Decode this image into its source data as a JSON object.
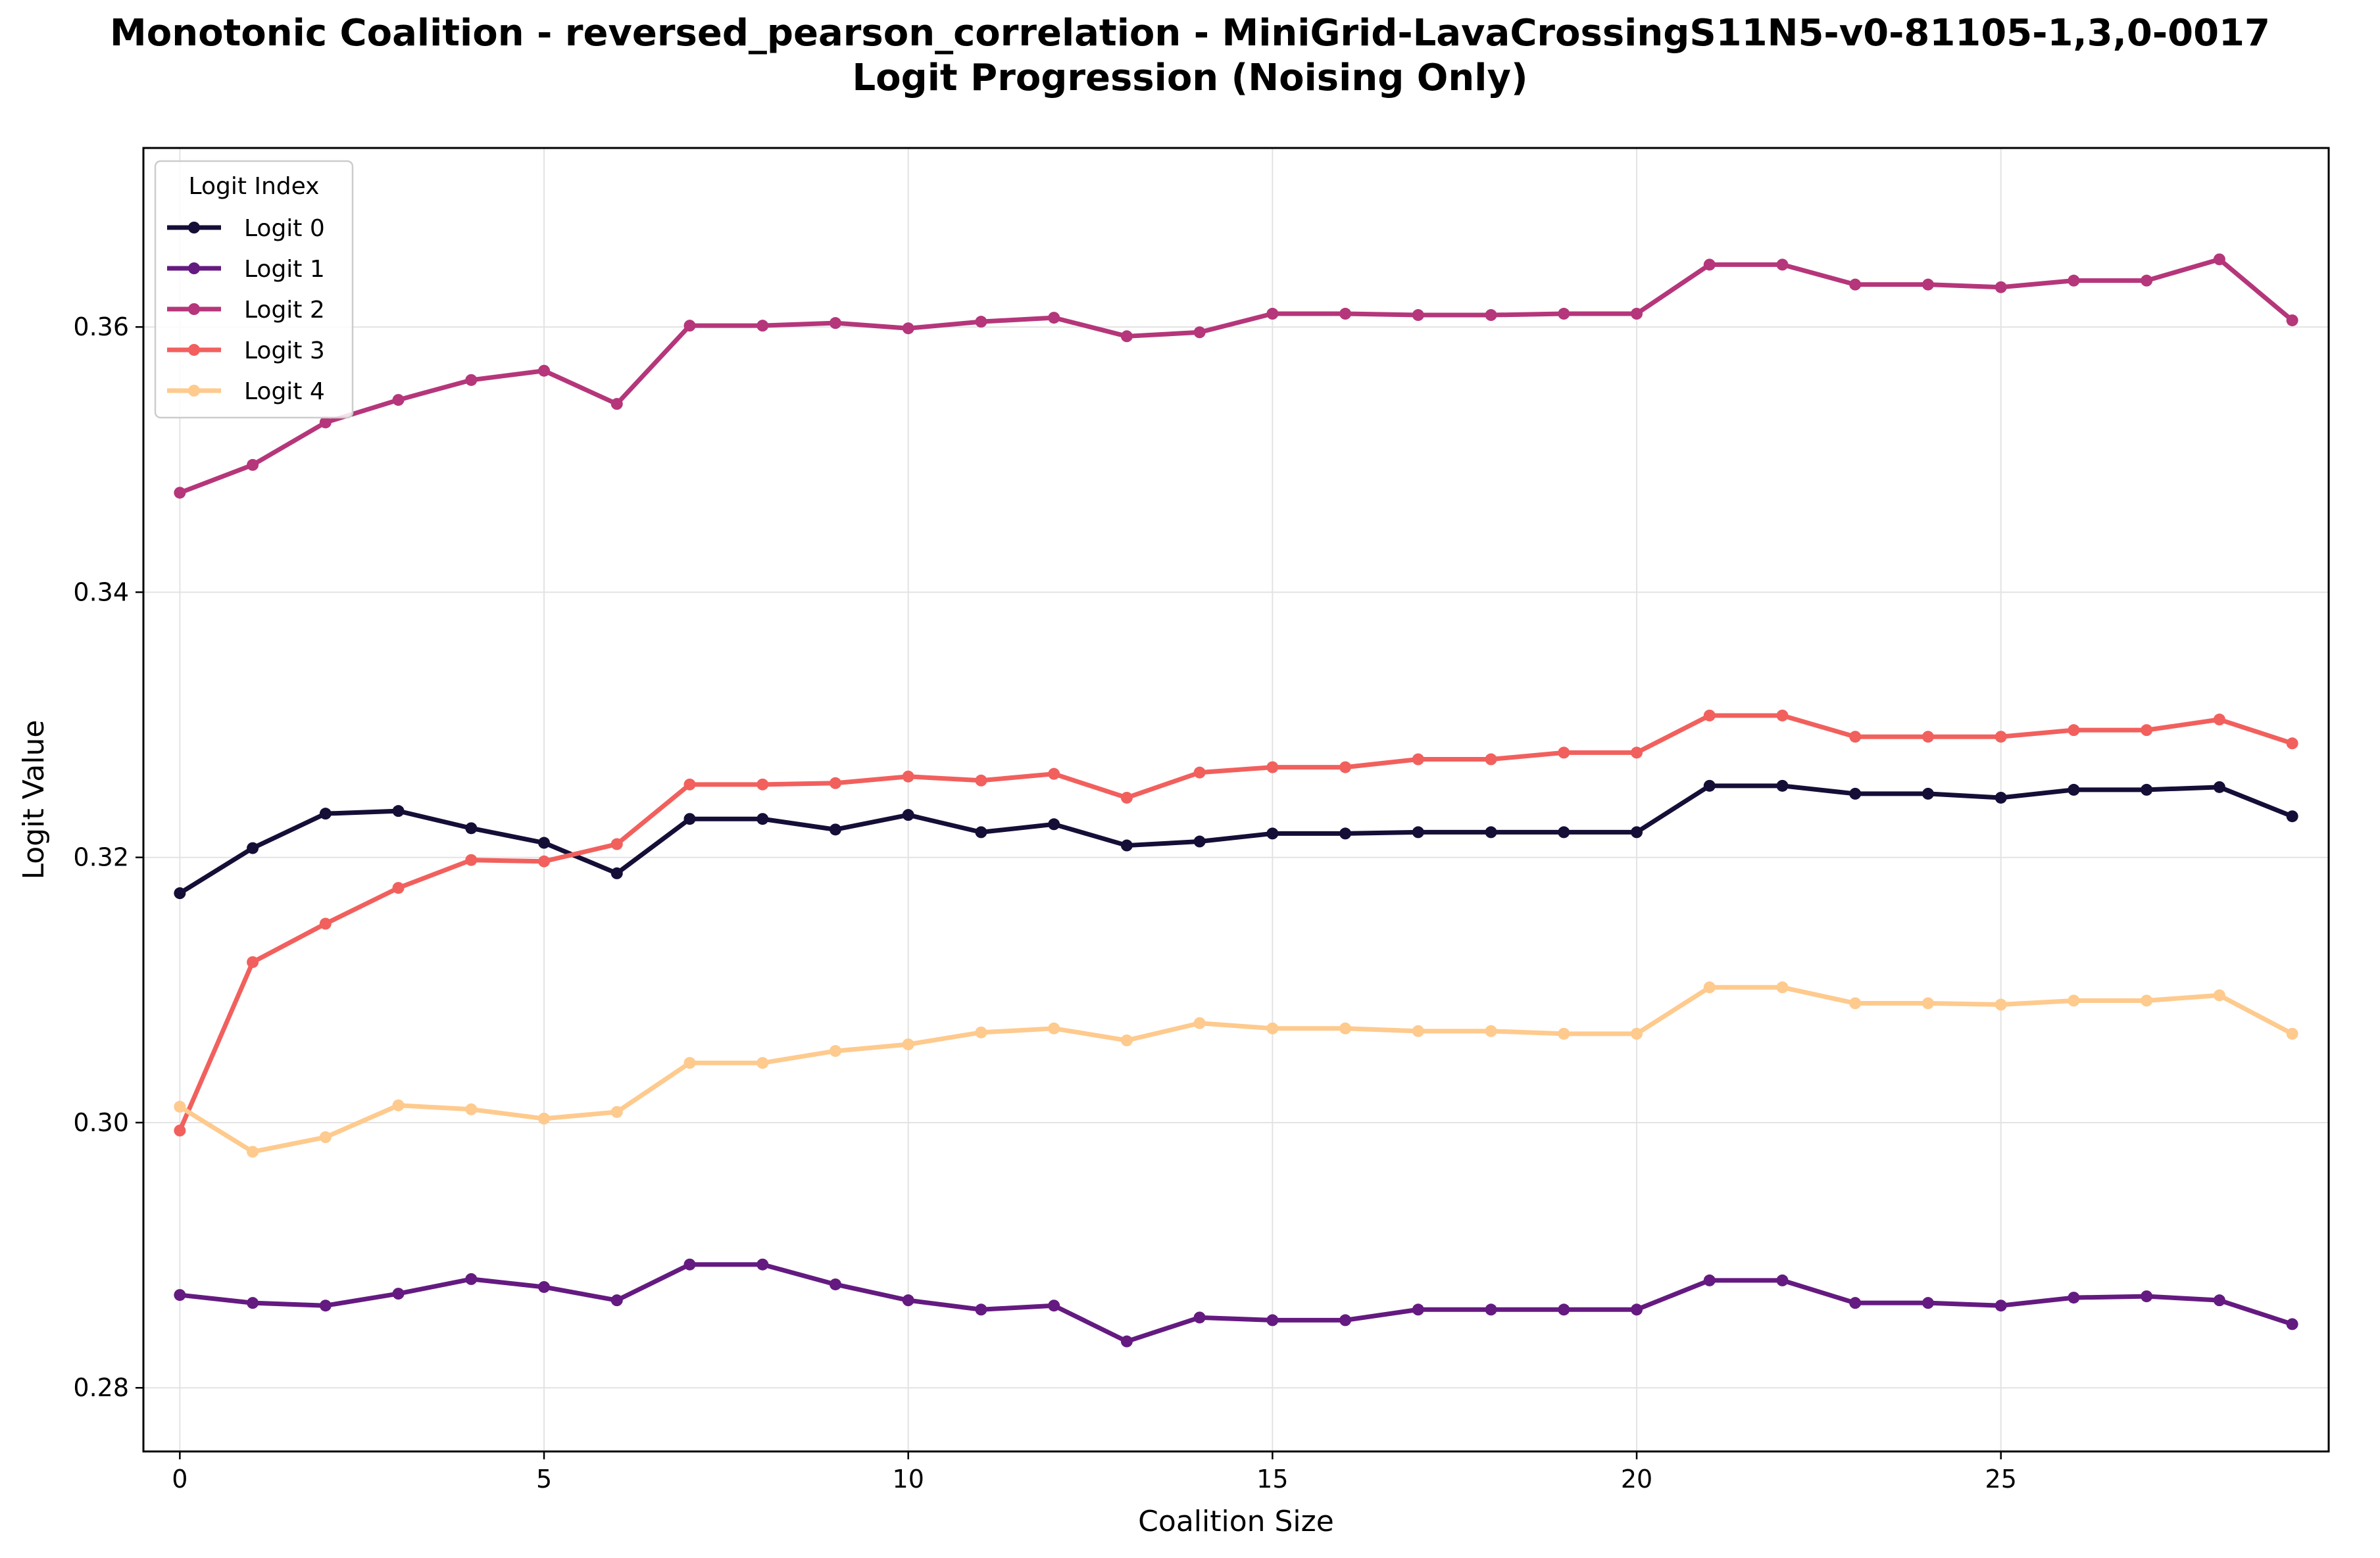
{
  "chart_data": {
    "type": "line",
    "title_line1": "Monotonic Coalition - reversed_pearson_correlation - MiniGrid-LavaCrossingS11N5-v0-81105-1,3,0-0017",
    "title_line2": "Logit Progression (Noising Only)",
    "xlabel": "Coalition Size",
    "ylabel": "Logit Value",
    "xlim": [
      -0.5,
      29.5
    ],
    "ylim": [
      0.2752,
      0.3735
    ],
    "xticks": [
      0,
      5,
      10,
      15,
      20,
      25
    ],
    "yticks": [
      0.28,
      0.3,
      0.32,
      0.34,
      0.36
    ],
    "ytick_labels": [
      "0.28",
      "0.30",
      "0.32",
      "0.34",
      "0.36"
    ],
    "grid": true,
    "legend_title": "Logit Index",
    "legend_position": "top-left",
    "x": [
      0,
      1,
      2,
      3,
      4,
      5,
      6,
      7,
      8,
      9,
      10,
      11,
      12,
      13,
      14,
      15,
      16,
      17,
      18,
      19,
      20,
      21,
      22,
      23,
      24,
      25,
      26,
      27,
      28,
      29
    ],
    "series": [
      {
        "name": "Logit 0",
        "color": "#150e37",
        "values": [
          0.3173,
          0.3207,
          0.3233,
          0.3235,
          0.3222,
          0.3211,
          0.3188,
          0.3229,
          0.3229,
          0.3221,
          0.3232,
          0.3219,
          0.3225,
          0.3209,
          0.3212,
          0.3218,
          0.3218,
          0.3219,
          0.3219,
          0.3219,
          0.3219,
          0.3254,
          0.3254,
          0.3248,
          0.3248,
          0.3245,
          0.3251,
          0.3251,
          0.3253,
          0.3231
        ]
      },
      {
        "name": "Logit 1",
        "color": "#641a80",
        "values": [
          0.287,
          0.2864,
          0.2862,
          0.2871,
          0.2882,
          0.2876,
          0.2866,
          0.2893,
          0.2893,
          0.2878,
          0.2866,
          0.2859,
          0.2862,
          0.2835,
          0.2853,
          0.2851,
          0.2851,
          0.2859,
          0.2859,
          0.2859,
          0.2859,
          0.2881,
          0.2881,
          0.2864,
          0.2864,
          0.2862,
          0.2868,
          0.2869,
          0.2866,
          0.2848
        ]
      },
      {
        "name": "Logit 2",
        "color": "#b5367a",
        "values": [
          0.3475,
          0.3496,
          0.3528,
          0.3545,
          0.356,
          0.3567,
          0.3542,
          0.3601,
          0.3601,
          0.3603,
          0.3599,
          0.3604,
          0.3607,
          0.3593,
          0.3596,
          0.361,
          0.361,
          0.3609,
          0.3609,
          0.361,
          0.361,
          0.3647,
          0.3647,
          0.3632,
          0.3632,
          0.363,
          0.3635,
          0.3635,
          0.3651,
          0.3605
        ]
      },
      {
        "name": "Logit 3",
        "color": "#f1605d",
        "values": [
          0.2994,
          0.3121,
          0.315,
          0.3177,
          0.3198,
          0.3197,
          0.321,
          0.3255,
          0.3255,
          0.3256,
          0.3261,
          0.3258,
          0.3263,
          0.3245,
          0.3264,
          0.3268,
          0.3268,
          0.3274,
          0.3274,
          0.3279,
          0.3279,
          0.3307,
          0.3307,
          0.3291,
          0.3291,
          0.3291,
          0.3296,
          0.3296,
          0.3304,
          0.3286
        ]
      },
      {
        "name": "Logit 4",
        "color": "#feca8d",
        "values": [
          0.3012,
          0.2978,
          0.2989,
          0.3013,
          0.301,
          0.3003,
          0.3008,
          0.3045,
          0.3045,
          0.3054,
          0.3059,
          0.3068,
          0.3071,
          0.3062,
          0.3075,
          0.3071,
          0.3071,
          0.3069,
          0.3069,
          0.3067,
          0.3067,
          0.3102,
          0.3102,
          0.309,
          0.309,
          0.3089,
          0.3092,
          0.3092,
          0.3096,
          0.3067
        ]
      }
    ]
  }
}
